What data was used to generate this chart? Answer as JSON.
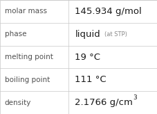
{
  "rows": [
    {
      "label": "molar mass",
      "value": "145.934 g/mol",
      "type": "plain"
    },
    {
      "label": "phase",
      "value": "liquid",
      "suffix": "(at STP)",
      "type": "suffix"
    },
    {
      "label": "melting point",
      "value": "19 °C",
      "type": "plain"
    },
    {
      "label": "boiling point",
      "value": "111 °C",
      "type": "plain"
    },
    {
      "label": "density",
      "value": "2.1766 g/cm",
      "superscript": "3",
      "type": "super"
    }
  ],
  "background_color": "#ffffff",
  "border_color": "#c8c8c8",
  "label_color": "#505050",
  "value_color": "#1a1a1a",
  "suffix_color": "#888888",
  "label_fontsize": 7.5,
  "value_fontsize": 9.5,
  "suffix_fontsize": 6.0,
  "super_fontsize": 6.5,
  "col_split": 0.435,
  "fig_width": 2.28,
  "fig_height": 1.64,
  "dpi": 100
}
